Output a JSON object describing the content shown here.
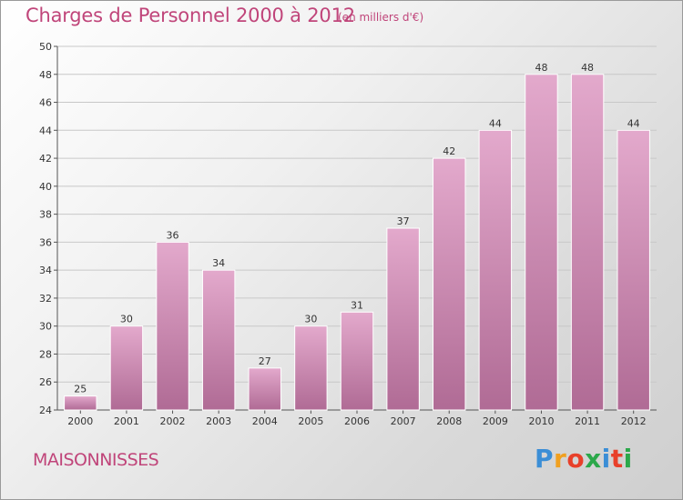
{
  "title": "Charges de Personnel 2000 à 2012",
  "subtitle": "(en milliers d'€)",
  "commune": "MAISONNISSES",
  "logo": {
    "text": "Proxiti",
    "letters": [
      "P",
      "r",
      "o",
      "x",
      "i",
      "t",
      "i"
    ],
    "colors": [
      "#3b8ed6",
      "#f0a020",
      "#e8402a",
      "#2ba84a",
      "#3b8ed6",
      "#e8402a",
      "#2ba84a"
    ]
  },
  "colors": {
    "bar_top": "#e3a9cc",
    "bar_bottom": "#b06b95",
    "title": "#c0457a"
  },
  "chart_data": {
    "type": "bar",
    "title": "Charges de Personnel 2000 à 2012",
    "subtitle": "(en milliers d'€)",
    "categories": [
      "2000",
      "2001",
      "2002",
      "2003",
      "2004",
      "2005",
      "2006",
      "2007",
      "2008",
      "2009",
      "2010",
      "2011",
      "2012"
    ],
    "values": [
      25,
      30,
      36,
      34,
      27,
      30,
      31,
      37,
      42,
      44,
      48,
      48,
      44
    ],
    "ylim": [
      24,
      50
    ],
    "yticks": [
      24,
      26,
      28,
      30,
      32,
      34,
      36,
      38,
      40,
      42,
      44,
      46,
      48,
      50
    ],
    "grid": true
  }
}
